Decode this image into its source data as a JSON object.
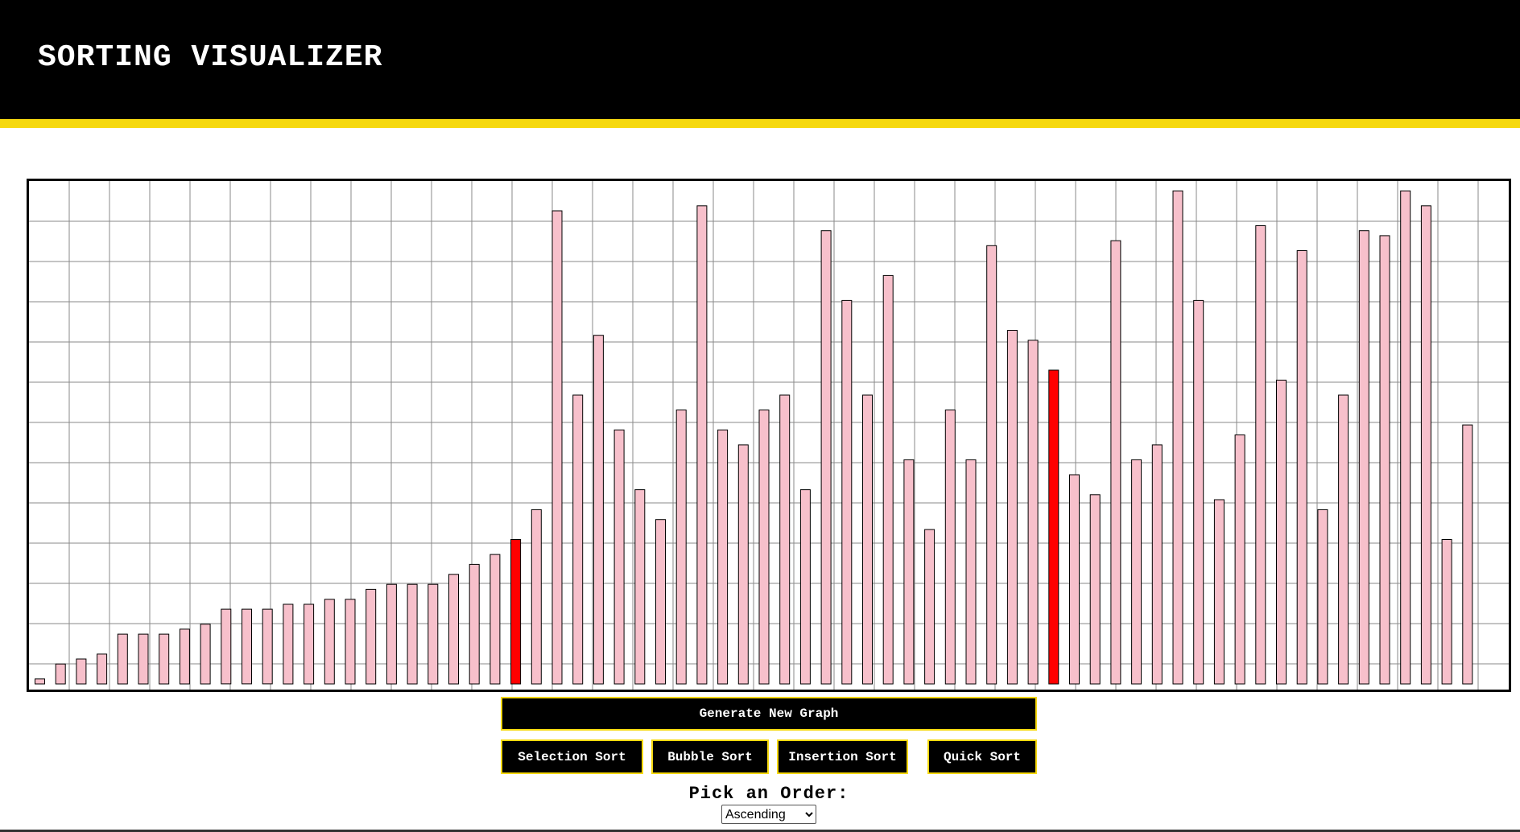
{
  "header": {
    "title": "SORTING VISUALIZER",
    "bg_color": "#000000",
    "accent_color": "#f6d90f"
  },
  "chart_data": {
    "type": "bar",
    "values": [
      1,
      4,
      5,
      6,
      10,
      10,
      10,
      11,
      12,
      15,
      15,
      15,
      16,
      16,
      17,
      17,
      19,
      20,
      20,
      20,
      22,
      24,
      26,
      29,
      35,
      95,
      58,
      70,
      51,
      39,
      33,
      55,
      96,
      51,
      48,
      55,
      58,
      39,
      91,
      77,
      58,
      82,
      45,
      31,
      55,
      45,
      88,
      71,
      69,
      63,
      42,
      38,
      89,
      45,
      48,
      99,
      77,
      37,
      50,
      92,
      61,
      87,
      35,
      58,
      91,
      90,
      99,
      96,
      29,
      52
    ],
    "highlighted_indices": [
      23,
      49
    ],
    "bar_color": "#f7c0cb",
    "highlight_color": "#ff0000",
    "grid": true,
    "ylim": [
      0,
      100
    ]
  },
  "controls": {
    "generate_label": "Generate New Graph",
    "selection_label": "Selection Sort",
    "bubble_label": "Bubble Sort",
    "insertion_label": "Insertion Sort",
    "quick_label": "Quick Sort",
    "order_label": "Pick an Order:",
    "order_selected": "Ascending",
    "order_options": [
      "Ascending"
    ]
  }
}
